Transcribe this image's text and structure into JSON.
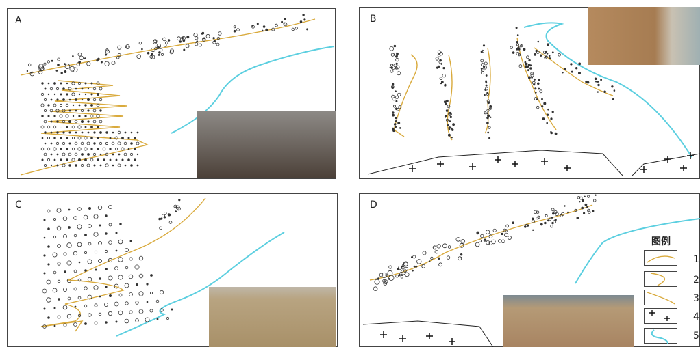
{
  "panels": [
    {
      "label": "A"
    },
    {
      "label": "B"
    },
    {
      "label": "C"
    },
    {
      "label": "D"
    }
  ],
  "legend": {
    "title": "图例",
    "items": [
      "1",
      "2",
      "3",
      "4",
      "5"
    ]
  }
}
